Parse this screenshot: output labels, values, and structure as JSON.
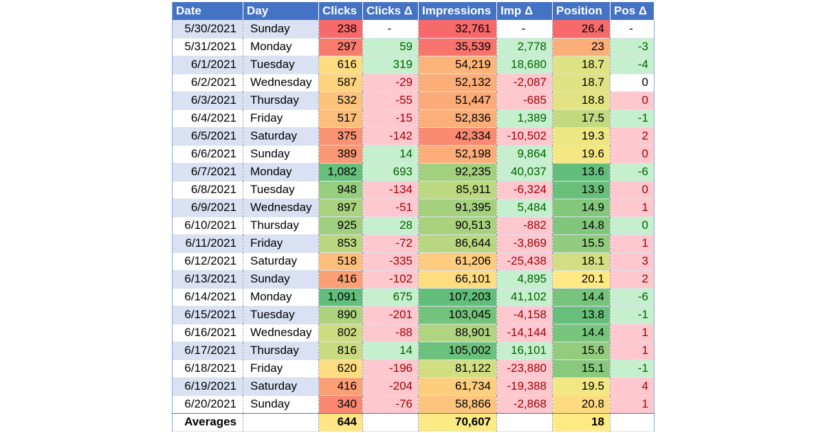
{
  "headers": [
    "Date",
    "Day",
    "Clicks",
    "Clicks Δ",
    "Impressions",
    "Imp Δ",
    "Position",
    "Pos Δ"
  ],
  "rows": [
    [
      "5/30/2021",
      "Sunday",
      "238",
      "-",
      "32,761",
      "-",
      "26.4",
      "-"
    ],
    [
      "5/31/2021",
      "Monday",
      "297",
      "59",
      "35,539",
      "2,778",
      "23",
      "-3"
    ],
    [
      "6/1/2021",
      "Tuesday",
      "616",
      "319",
      "54,219",
      "18,680",
      "18.7",
      "-4"
    ],
    [
      "6/2/2021",
      "Wednesday",
      "587",
      "-29",
      "52,132",
      "-2,087",
      "18.7",
      "0"
    ],
    [
      "6/3/2021",
      "Thursday",
      "532",
      "-55",
      "51,447",
      "-685",
      "18.8",
      "0"
    ],
    [
      "6/4/2021",
      "Friday",
      "517",
      "-15",
      "52,836",
      "1,389",
      "17.5",
      "-1"
    ],
    [
      "6/5/2021",
      "Saturday",
      "375",
      "-142",
      "42,334",
      "-10,502",
      "19.3",
      "2"
    ],
    [
      "6/6/2021",
      "Sunday",
      "389",
      "14",
      "52,198",
      "9,864",
      "19.6",
      "0"
    ],
    [
      "6/7/2021",
      "Monday",
      "1,082",
      "693",
      "92,235",
      "40,037",
      "13.6",
      "-6"
    ],
    [
      "6/8/2021",
      "Tuesday",
      "948",
      "-134",
      "85,911",
      "-6,324",
      "13.9",
      "0"
    ],
    [
      "6/9/2021",
      "Wednesday",
      "897",
      "-51",
      "91,395",
      "5,484",
      "14.9",
      "1"
    ],
    [
      "6/10/2021",
      "Thursday",
      "925",
      "28",
      "90,513",
      "-882",
      "14.8",
      "0"
    ],
    [
      "6/11/2021",
      "Friday",
      "853",
      "-72",
      "86,644",
      "-3,869",
      "15.5",
      "1"
    ],
    [
      "6/12/2021",
      "Saturday",
      "518",
      "-335",
      "61,206",
      "-25,438",
      "18.1",
      "3"
    ],
    [
      "6/13/2021",
      "Sunday",
      "416",
      "-102",
      "66,101",
      "4,895",
      "20.1",
      "2"
    ],
    [
      "6/14/2021",
      "Monday",
      "1,091",
      "675",
      "107,203",
      "41,102",
      "14.4",
      "-6"
    ],
    [
      "6/15/2021",
      "Tuesday",
      "890",
      "-201",
      "103,045",
      "-4,158",
      "13.8",
      "-1"
    ],
    [
      "6/16/2021",
      "Wednesday",
      "802",
      "-88",
      "88,901",
      "-14,144",
      "14.4",
      "1"
    ],
    [
      "6/17/2021",
      "Thursday",
      "816",
      "14",
      "105,002",
      "16,101",
      "15.6",
      "1"
    ],
    [
      "6/18/2021",
      "Friday",
      "620",
      "-196",
      "81,122",
      "-23,880",
      "15.1",
      "-1"
    ],
    [
      "6/19/2021",
      "Saturday",
      "416",
      "-204",
      "61,734",
      "-19,388",
      "19.5",
      "4"
    ],
    [
      "6/20/2021",
      "Sunday",
      "340",
      "-76",
      "58,866",
      "-2,868",
      "20.8",
      "1"
    ]
  ],
  "averages": {
    "label": "Averages",
    "clicks": "644",
    "impressions": "70,607",
    "position": "18"
  },
  "colors": {
    "header_bg": "#4472c4",
    "band_bg": "#d9e1f2",
    "pos_delta_bg": "#c6efce",
    "pos_delta_fg": "#006100",
    "neg_delta_bg": "#ffc7ce",
    "neg_delta_fg": "#9c0006",
    "scale_low": "#f8696b",
    "scale_mid": "#ffeb84",
    "scale_high": "#63be7b"
  }
}
